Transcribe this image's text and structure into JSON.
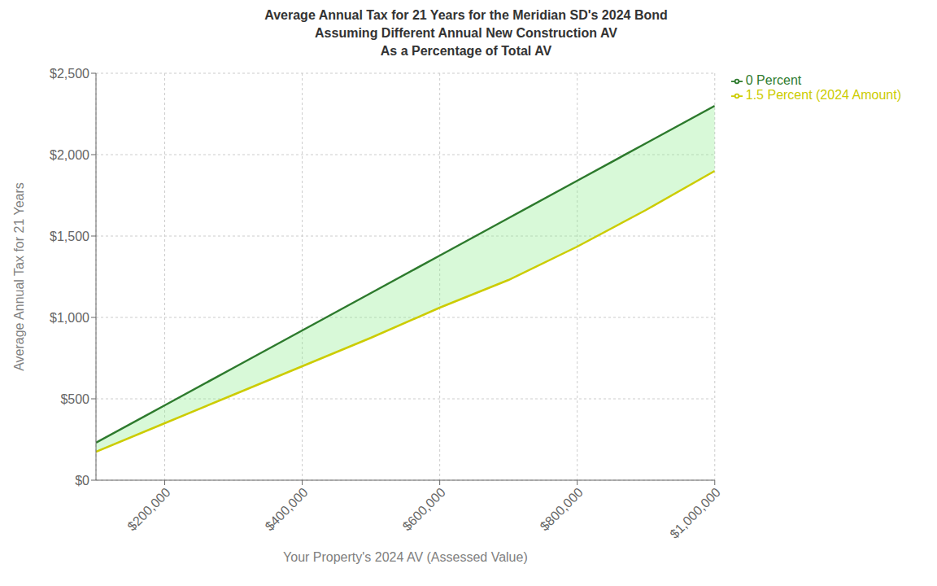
{
  "chart_data": {
    "type": "line",
    "title": "Average Annual Tax for 21 Years for the Meridian SD's 2024 Bond\nAssuming Different Annual New Construction AV\nAs a Percentage of Total AV",
    "xlabel": "Your Property's 2024 AV (Assessed Value)",
    "ylabel": "Average Annual Tax for 21 Years",
    "x": [
      100000,
      200000,
      300000,
      400000,
      500000,
      600000,
      700000,
      800000,
      900000,
      1000000
    ],
    "series": [
      {
        "name": "0 Percent",
        "color": "#2d7a2d",
        "values": [
          230,
          460,
          690,
          920,
          1150,
          1380,
          1610,
          1840,
          2070,
          2300
        ]
      },
      {
        "name": "1.5 Percent (2024 Amount)",
        "color": "#cccc00",
        "values": [
          175,
          350,
          525,
          700,
          875,
          1060,
          1230,
          1435,
          1660,
          1900
        ]
      }
    ],
    "color": "#90ee90",
    "xlim": [
      100000,
      1000000
    ],
    "xticks": [
      {
        "value": 200000,
        "label": "$200,000"
      },
      {
        "value": 400000,
        "label": "$400,000"
      },
      {
        "value": 600000,
        "label": "$600,000"
      },
      {
        "value": 800000,
        "label": "$800,000"
      },
      {
        "value": 1000000,
        "label": "$1,000,000"
      }
    ],
    "ylim": [
      0,
      2500
    ],
    "yticks": [
      {
        "value": 0,
        "label": "$0"
      },
      {
        "value": 500,
        "label": "$500"
      },
      {
        "value": 1000,
        "label": "$1,000"
      },
      {
        "value": 1500,
        "label": "$1,500"
      },
      {
        "value": 2000,
        "label": "$2,000"
      },
      {
        "value": 2500,
        "label": "$2,500"
      }
    ],
    "grid": true,
    "legend": "right"
  }
}
